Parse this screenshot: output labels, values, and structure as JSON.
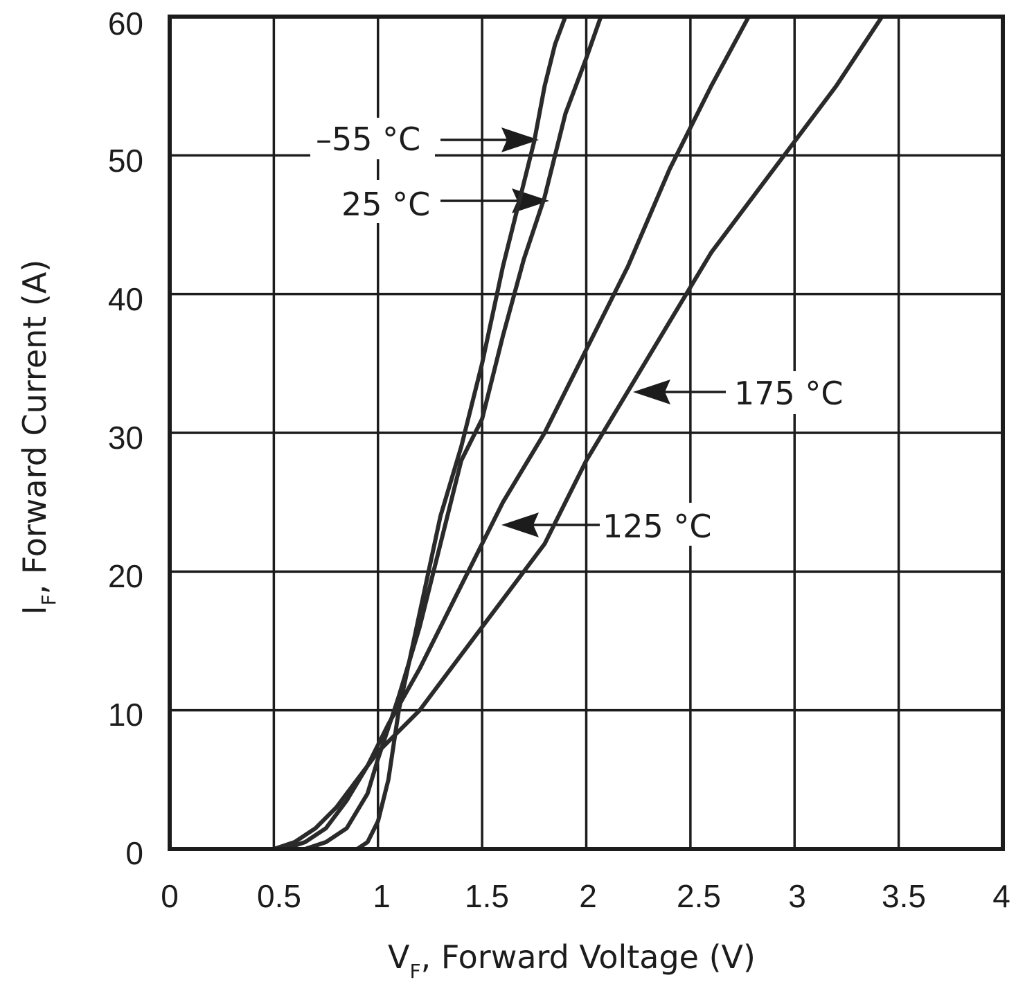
{
  "chart_data": {
    "type": "line",
    "title": "",
    "xlabel": {
      "main": "V",
      "sub": "F",
      "rest": ", Forward Voltage (V)"
    },
    "ylabel": {
      "main": "I",
      "sub": "F",
      "rest": ", Forward Current (A)"
    },
    "xlim": [
      0,
      4
    ],
    "ylim": [
      0,
      60
    ],
    "xticks": [
      0,
      0.5,
      1,
      1.5,
      2,
      2.5,
      3,
      3.5,
      4
    ],
    "xtick_labels": [
      "0",
      "0.5",
      "1",
      "1.5",
      "2",
      "2.5",
      "3",
      "3.5",
      "4"
    ],
    "yticks": [
      0,
      10,
      20,
      30,
      40,
      50,
      60
    ],
    "ytick_labels": [
      "0",
      "10",
      "20",
      "30",
      "40",
      "50",
      "60"
    ],
    "grid": true,
    "series": [
      {
        "name": "-55 °C",
        "x": [
          0,
          0.9,
          0.95,
          1.0,
          1.05,
          1.1,
          1.2,
          1.3,
          1.4,
          1.5,
          1.6,
          1.7,
          1.75,
          1.8,
          1.85,
          1.9
        ],
        "y": [
          0,
          0,
          0.5,
          2,
          5,
          10,
          17,
          24,
          29,
          35,
          42,
          48,
          51,
          55,
          58,
          60
        ]
      },
      {
        "name": "25 °C",
        "x": [
          0,
          0.65,
          0.75,
          0.85,
          0.95,
          1.0,
          1.1,
          1.2,
          1.3,
          1.4,
          1.5,
          1.6,
          1.7,
          1.8,
          1.9,
          2.0,
          2.07
        ],
        "y": [
          0,
          0,
          0.5,
          1.5,
          4,
          6.5,
          11,
          16,
          22,
          28,
          31,
          37,
          42.5,
          47,
          53,
          57,
          60
        ]
      },
      {
        "name": "125 °C",
        "x": [
          0,
          0.55,
          0.65,
          0.75,
          0.85,
          0.95,
          1.05,
          1.2,
          1.4,
          1.6,
          1.8,
          2.0,
          2.2,
          2.4,
          2.6,
          2.78
        ],
        "y": [
          0,
          0,
          0.5,
          1.5,
          3.5,
          6,
          9,
          13,
          19,
          25,
          30,
          36,
          42,
          49,
          55,
          60
        ]
      },
      {
        "name": "175 °C",
        "x": [
          0,
          0.5,
          0.6,
          0.7,
          0.8,
          0.9,
          1.0,
          1.2,
          1.4,
          1.6,
          1.8,
          2.0,
          2.2,
          2.4,
          2.6,
          2.8,
          3.0,
          3.2,
          3.42
        ],
        "y": [
          0,
          0,
          0.5,
          1.5,
          3,
          5,
          7,
          10,
          14,
          18,
          22,
          28,
          33,
          38,
          43,
          47,
          51,
          55,
          60
        ]
      }
    ],
    "annotations": [
      {
        "text": "–55 °C",
        "series": "-55 °C",
        "target": [
          1.77,
          51.2
        ]
      },
      {
        "text": "25 °C",
        "series": "25 °C",
        "target": [
          1.82,
          46.8
        ]
      },
      {
        "text": "175 °C",
        "series": "175 °C",
        "target": [
          2.22,
          33.0
        ]
      },
      {
        "text": "125 °C",
        "series": "125 °C",
        "target": [
          1.6,
          23.2
        ]
      }
    ]
  }
}
